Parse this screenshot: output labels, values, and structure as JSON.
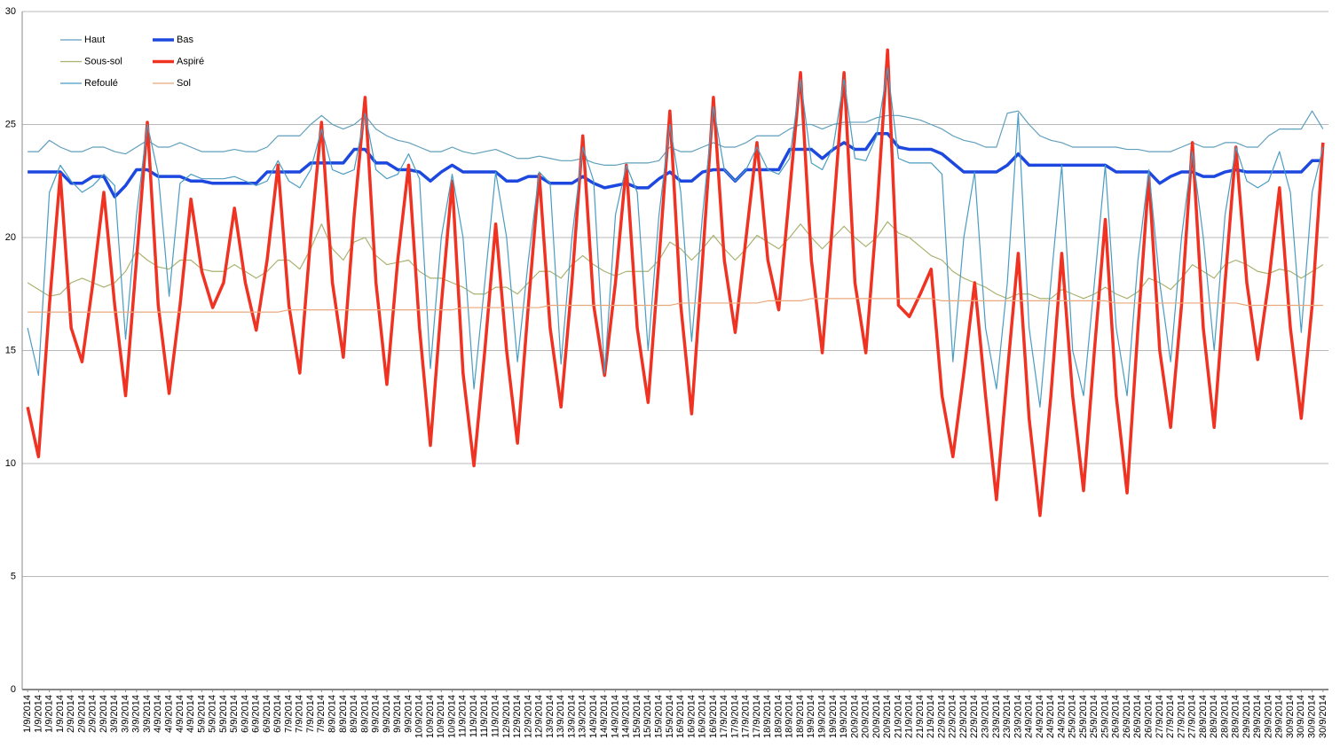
{
  "chart_data": {
    "type": "line",
    "categories": [
      "1/9/2014",
      "1/9/2014",
      "1/9/2014",
      "1/9/2014",
      "2/9/2014",
      "2/9/2014",
      "2/9/2014",
      "2/9/2014",
      "3/9/2014",
      "3/9/2014",
      "3/9/2014",
      "3/9/2014",
      "4/9/2014",
      "4/9/2014",
      "4/9/2014",
      "4/9/2014",
      "5/9/2014",
      "5/9/2014",
      "5/9/2014",
      "5/9/2014",
      "6/9/2014",
      "6/9/2014",
      "6/9/2014",
      "6/9/2014",
      "7/9/2014",
      "7/9/2014",
      "7/9/2014",
      "7/9/2014",
      "8/9/2014",
      "8/9/2014",
      "8/9/2014",
      "8/9/2014",
      "9/9/2014",
      "9/9/2014",
      "9/9/2014",
      "9/9/2014",
      "10/9/2014",
      "10/9/2014",
      "10/9/2014",
      "10/9/2014",
      "11/9/2014",
      "11/9/2014",
      "11/9/2014",
      "11/9/2014",
      "12/9/2014",
      "12/9/2014",
      "12/9/2014",
      "12/9/2014",
      "13/9/2014",
      "13/9/2014",
      "13/9/2014",
      "13/9/2014",
      "14/9/2014",
      "14/9/2014",
      "14/9/2014",
      "14/9/2014",
      "15/9/2014",
      "15/9/2014",
      "15/9/2014",
      "15/9/2014",
      "16/9/2014",
      "16/9/2014",
      "16/9/2014",
      "16/9/2014",
      "17/9/2014",
      "17/9/2014",
      "17/9/2014",
      "17/9/2014",
      "18/9/2014",
      "18/9/2014",
      "18/9/2014",
      "18/9/2014",
      "19/9/2014",
      "19/9/2014",
      "19/9/2014",
      "19/9/2014",
      "20/9/2014",
      "20/9/2014",
      "20/9/2014",
      "20/9/2014",
      "21/9/2014",
      "21/9/2014",
      "21/9/2014",
      "21/9/2014",
      "22/9/2014",
      "22/9/2014",
      "22/9/2014",
      "22/9/2014",
      "23/9/2014",
      "23/9/2014",
      "23/9/2014",
      "23/9/2014",
      "24/9/2014",
      "24/9/2014",
      "24/9/2014",
      "24/9/2014",
      "25/9/2014",
      "25/9/2014",
      "25/9/2014",
      "25/9/2014",
      "26/9/2014",
      "26/9/2014",
      "26/9/2014",
      "26/9/2014",
      "27/9/2014",
      "27/9/2014",
      "27/9/2014",
      "27/9/2014",
      "28/9/2014",
      "28/9/2014",
      "28/9/2014",
      "28/9/2014",
      "29/9/2014",
      "29/9/2014",
      "29/9/2014",
      "29/9/2014",
      "30/9/2014",
      "30/9/2014",
      "30/9/2014",
      "30/9/2014"
    ],
    "series": [
      {
        "name": "Haut",
        "color": "#5f9fbc",
        "line_width": 1.2,
        "values": [
          23.8,
          23.8,
          24.3,
          24,
          23.8,
          23.8,
          24,
          24,
          23.8,
          23.7,
          24,
          24.3,
          24,
          24,
          24.2,
          24,
          23.8,
          23.8,
          23.8,
          23.9,
          23.8,
          23.8,
          24,
          24.5,
          24.5,
          24.5,
          25,
          25.4,
          25,
          24.8,
          25,
          25.4,
          24.8,
          24.5,
          24.3,
          24.2,
          24,
          23.8,
          23.8,
          24,
          23.8,
          23.7,
          23.8,
          23.9,
          23.7,
          23.5,
          23.5,
          23.6,
          23.5,
          23.4,
          23.4,
          23.5,
          23.3,
          23.2,
          23.2,
          23.3,
          23.3,
          23.3,
          23.4,
          24,
          23.8,
          23.8,
          24,
          24.2,
          24,
          24,
          24.2,
          24.5,
          24.5,
          24.5,
          24.8,
          25,
          25,
          24.8,
          25,
          25.1,
          25.1,
          25.1,
          25.3,
          25.4,
          25.4,
          25.3,
          25.2,
          25,
          24.8,
          24.5,
          24.3,
          24.2,
          24,
          24,
          25.5,
          25.6,
          25,
          24.5,
          24.3,
          24.2,
          24,
          24,
          24,
          24,
          24,
          23.9,
          23.9,
          23.8,
          23.8,
          23.8,
          24,
          24.2,
          24,
          24,
          24.2,
          24.2,
          24,
          24,
          24.5,
          24.8,
          24.8,
          24.8,
          25.6,
          24.8
        ]
      },
      {
        "name": "Bas",
        "color": "#1d48e0",
        "line_width": 3.5,
        "values": [
          22.9,
          22.9,
          22.9,
          22.9,
          22.4,
          22.4,
          22.7,
          22.7,
          21.8,
          22.3,
          23,
          23,
          22.7,
          22.7,
          22.7,
          22.5,
          22.5,
          22.4,
          22.4,
          22.4,
          22.4,
          22.4,
          22.9,
          22.9,
          22.9,
          22.9,
          23.3,
          23.3,
          23.3,
          23.3,
          23.9,
          23.9,
          23.3,
          23.3,
          23,
          23,
          22.9,
          22.5,
          22.9,
          23.2,
          22.9,
          22.9,
          22.9,
          22.9,
          22.5,
          22.5,
          22.7,
          22.7,
          22.4,
          22.4,
          22.4,
          22.7,
          22.4,
          22.2,
          22.3,
          22.4,
          22.2,
          22.2,
          22.6,
          22.9,
          22.5,
          22.5,
          22.9,
          23,
          23,
          22.5,
          23,
          23,
          23,
          23,
          23.9,
          23.9,
          23.9,
          23.5,
          23.9,
          24.2,
          23.9,
          23.9,
          24.6,
          24.6,
          24,
          23.9,
          23.9,
          23.9,
          23.7,
          23.3,
          22.9,
          22.9,
          22.9,
          22.9,
          23.2,
          23.7,
          23.2,
          23.2,
          23.2,
          23.2,
          23.2,
          23.2,
          23.2,
          23.2,
          22.9,
          22.9,
          22.9,
          22.9,
          22.4,
          22.7,
          22.9,
          22.9,
          22.7,
          22.7,
          22.9,
          23,
          22.9,
          22.9,
          22.9,
          22.9,
          22.9,
          22.9,
          23.4,
          23.4
        ]
      },
      {
        "name": "Sous-sol",
        "color": "#a9b26e",
        "line_width": 1.2,
        "values": [
          18,
          17.7,
          17.4,
          17.5,
          18,
          18.2,
          18,
          17.8,
          18,
          18.5,
          19.4,
          19,
          18.7,
          18.6,
          19,
          19,
          18.6,
          18.5,
          18.5,
          18.8,
          18.5,
          18.2,
          18.5,
          19,
          19,
          18.6,
          19.5,
          20.6,
          19.5,
          19,
          19.8,
          20,
          19.2,
          18.8,
          18.9,
          19,
          18.5,
          18.2,
          18.2,
          18,
          17.8,
          17.5,
          17.5,
          17.8,
          17.8,
          17.5,
          18,
          18.5,
          18.5,
          18.2,
          18.8,
          19.2,
          18.8,
          18.5,
          18.3,
          18.5,
          18.5,
          18.5,
          19,
          19.8,
          19.5,
          19,
          19.5,
          20.1,
          19.5,
          19,
          19.5,
          20.1,
          19.8,
          19.5,
          20,
          20.6,
          20,
          19.5,
          20,
          20.5,
          20,
          19.6,
          20,
          20.7,
          20.2,
          20,
          19.6,
          19.2,
          19,
          18.5,
          18.2,
          18,
          17.8,
          17.5,
          17.3,
          17.5,
          17.5,
          17.3,
          17.3,
          17.7,
          17.5,
          17.3,
          17.5,
          17.8,
          17.5,
          17.3,
          17.6,
          18.2,
          18,
          17.7,
          18.2,
          18.8,
          18.5,
          18.2,
          18.8,
          19,
          18.8,
          18.5,
          18.4,
          18.6,
          18.5,
          18.2,
          18.5,
          18.8
        ]
      },
      {
        "name": "Aspiré",
        "color": "#f03222",
        "line_width": 3.5,
        "values": [
          12.5,
          10.3,
          17,
          22.8,
          16,
          14.5,
          18,
          22,
          17,
          13,
          19,
          25.1,
          17,
          13.1,
          17,
          21.7,
          18.5,
          16.9,
          18,
          21.3,
          18,
          15.9,
          19,
          23.2,
          17,
          14,
          20,
          25.1,
          18,
          14.7,
          21,
          26.2,
          18,
          13.5,
          19,
          23.2,
          16,
          10.8,
          17,
          22.5,
          14,
          9.9,
          15,
          20.6,
          15,
          10.9,
          17,
          22.8,
          16,
          12.5,
          18,
          24.5,
          17,
          13.9,
          18,
          23.2,
          16,
          12.7,
          19,
          25.6,
          17,
          12.2,
          19,
          26.2,
          19,
          15.8,
          20,
          24.2,
          19,
          16.8,
          22,
          27.3,
          19,
          14.9,
          21,
          27.3,
          18,
          14.9,
          21,
          28.3,
          17,
          16.5,
          17.5,
          18.6,
          13,
          10.3,
          14,
          18,
          13,
          8.4,
          14,
          19.3,
          12,
          7.7,
          13,
          19.3,
          13,
          8.8,
          15,
          20.8,
          13,
          8.7,
          16,
          22.7,
          15,
          11.6,
          17,
          24.2,
          16,
          11.6,
          18,
          24,
          18,
          14.6,
          18,
          22.2,
          16,
          12,
          17,
          24.2
        ]
      },
      {
        "name": "Refoulé",
        "color": "#4a9cc2",
        "line_width": 1.2,
        "values": [
          16,
          13.9,
          22,
          23.2,
          22.5,
          22,
          22.3,
          22.8,
          22.3,
          15.5,
          21,
          25,
          22.8,
          17.4,
          22.4,
          22.8,
          22.6,
          22.6,
          22.6,
          22.7,
          22.5,
          22.3,
          22.5,
          23.4,
          22.5,
          22.2,
          23,
          24.8,
          23,
          22.8,
          23,
          25.5,
          23,
          22.6,
          22.8,
          23.7,
          22.6,
          14.2,
          20,
          22.8,
          20,
          13.3,
          18,
          22.9,
          20,
          14.5,
          19,
          22.9,
          22.4,
          14.4,
          20,
          24,
          22.5,
          14,
          21,
          23.2,
          22,
          15,
          21,
          25,
          22,
          15.4,
          21,
          25.8,
          23,
          22.5,
          23,
          24,
          23,
          22.8,
          23.5,
          27,
          23.3,
          23,
          24,
          27,
          23.5,
          23.4,
          24.5,
          27.5,
          23.5,
          23.3,
          23.3,
          23.3,
          22.8,
          14.5,
          20,
          22.9,
          16,
          13.3,
          18,
          25.5,
          16,
          12.5,
          18,
          23.2,
          15,
          13,
          18,
          23.2,
          16,
          13,
          19,
          23,
          18,
          14.5,
          20,
          23.8,
          20,
          15,
          21,
          24,
          22.5,
          22.2,
          22.5,
          23.8,
          22,
          15.8,
          22,
          24
        ]
      },
      {
        "name": "Sol",
        "color": "#eba77a",
        "line_width": 1.2,
        "values": [
          16.7,
          16.7,
          16.7,
          16.7,
          16.7,
          16.7,
          16.7,
          16.7,
          16.7,
          16.7,
          16.7,
          16.7,
          16.7,
          16.7,
          16.7,
          16.7,
          16.7,
          16.7,
          16.7,
          16.7,
          16.7,
          16.7,
          16.7,
          16.7,
          16.8,
          16.8,
          16.8,
          16.8,
          16.8,
          16.8,
          16.8,
          16.8,
          16.8,
          16.8,
          16.8,
          16.8,
          16.8,
          16.8,
          16.8,
          16.8,
          16.9,
          16.9,
          16.9,
          16.9,
          16.9,
          16.9,
          16.9,
          16.9,
          17,
          17,
          17,
          17,
          17,
          17,
          17,
          17,
          17,
          17,
          17,
          17,
          17.1,
          17.1,
          17.1,
          17.1,
          17.1,
          17.1,
          17.1,
          17.1,
          17.2,
          17.2,
          17.2,
          17.2,
          17.3,
          17.3,
          17.3,
          17.3,
          17.3,
          17.3,
          17.3,
          17.3,
          17.3,
          17.3,
          17.3,
          17.3,
          17.2,
          17.2,
          17.2,
          17.2,
          17.2,
          17.2,
          17.2,
          17.2,
          17.2,
          17.2,
          17.2,
          17.2,
          17.2,
          17.2,
          17.2,
          17.2,
          17.1,
          17.1,
          17.1,
          17.1,
          17.1,
          17.1,
          17.1,
          17.1,
          17.1,
          17.1,
          17.1,
          17.1,
          17,
          17,
          17,
          17,
          17,
          17,
          17,
          17
        ]
      }
    ],
    "ylim": [
      0,
      30
    ],
    "yticks": [
      0,
      5,
      10,
      15,
      20,
      25,
      30
    ],
    "grid": true,
    "legend": "top-left"
  }
}
